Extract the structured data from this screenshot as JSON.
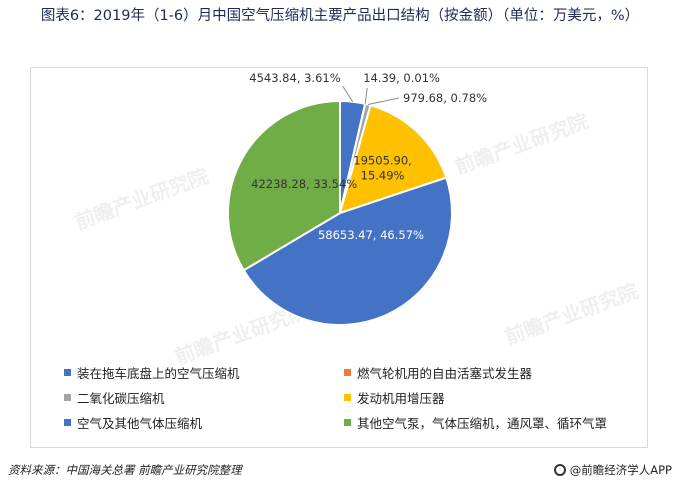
{
  "header": {
    "title": "图表6：2019年（1-6）月中国空气压缩机主要产品出口结构（按金额）（单位：万美元，%）"
  },
  "footer": {
    "source": "资料来源：中国海关总署 前瞻产业研究院整理",
    "brand": "@前瞻经济学人APP"
  },
  "watermark_text": "前瞻产业研究院",
  "chart_data": {
    "type": "pie",
    "slices": [
      {
        "name": "装在拖车底盘上的空气压缩机",
        "value": 4543.84,
        "percent": 3.61,
        "label": "4543.84, 3.61%",
        "color": "#4472c4"
      },
      {
        "name": "燃气轮机用的自由活塞式发生器",
        "value": 14.39,
        "percent": 0.01,
        "label": "14.39, 0.01%",
        "color": "#ed7d31"
      },
      {
        "name": "二氧化碳压缩机",
        "value": 979.68,
        "percent": 0.78,
        "label": "979.68, 0.78%",
        "color": "#a5a5a5"
      },
      {
        "name": "发动机用增压器",
        "value": 19505.9,
        "percent": 15.49,
        "label": "19505.90, 15.49%",
        "color": "#ffc000"
      },
      {
        "name": "空气及其他气体压缩机",
        "value": 58653.47,
        "percent": 46.57,
        "label": "58653.47, 46.57%",
        "color": "#4472c4"
      },
      {
        "name": "其他空气泵，气体压缩机，通风罩、循环气罩",
        "value": 42238.28,
        "percent": 33.54,
        "label": "42238.28, 33.54%",
        "color": "#70ad47"
      }
    ],
    "legend_placement": "bottom"
  }
}
